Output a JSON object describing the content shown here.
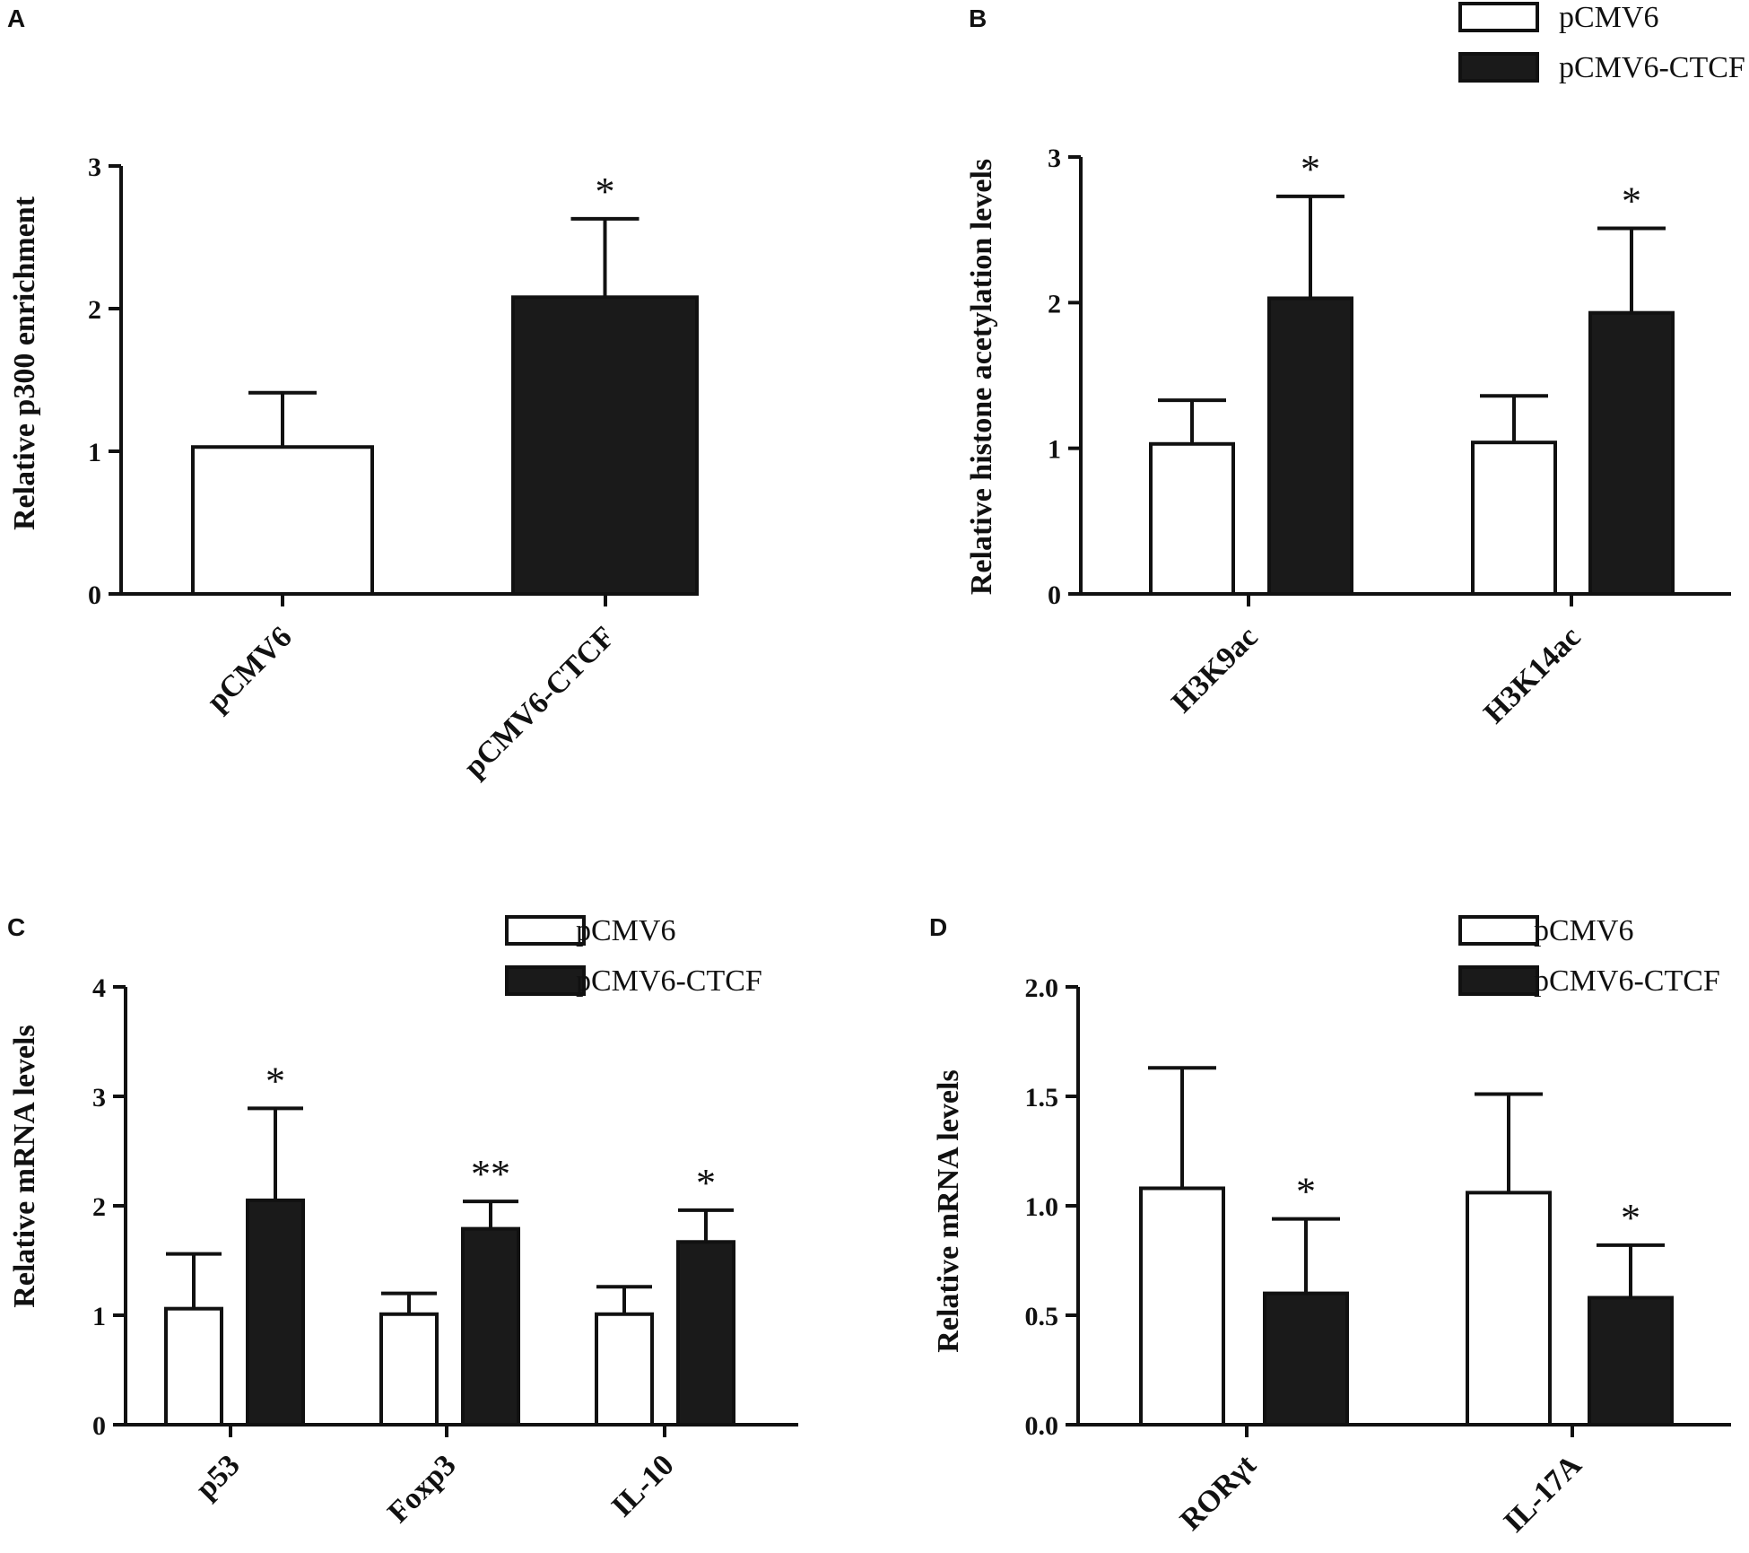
{
  "colors": {
    "pCMV6": "#ffffff",
    "pCMV6-CTCF": "#1a1a1a",
    "ink": "#111111"
  },
  "chart_data": [
    {
      "panel": "A",
      "type": "bar",
      "title": "",
      "xlabel": "",
      "ylabel": "Relative p300 enrichment",
      "ylim": [
        0,
        3
      ],
      "yticks": [
        0,
        1,
        2,
        3
      ],
      "ytick_labels": [
        "0",
        "1",
        "2",
        "3"
      ],
      "categories": [
        "pCMV6",
        "pCMV6-CTCF"
      ],
      "legend": null,
      "series": [
        {
          "name": "value",
          "values": [
            1.03,
            2.08
          ],
          "errors": [
            0.38,
            0.55
          ],
          "fills": [
            "pCMV6",
            "pCMV6-CTCF"
          ]
        }
      ],
      "significance": [
        "",
        "*"
      ]
    },
    {
      "panel": "B",
      "type": "bar",
      "title": "",
      "xlabel": "",
      "ylabel": "Relative histone  acetylation levels",
      "ylim": [
        0,
        3
      ],
      "yticks": [
        0,
        1,
        2,
        3
      ],
      "ytick_labels": [
        "0",
        "1",
        "2",
        "3"
      ],
      "categories": [
        "H3K9ac",
        "H3K14ac"
      ],
      "legend": {
        "position": "top-right",
        "entries": [
          "pCMV6",
          "pCMV6-CTCF"
        ]
      },
      "series": [
        {
          "name": "pCMV6",
          "values": [
            1.03,
            1.04
          ],
          "errors": [
            0.3,
            0.32
          ]
        },
        {
          "name": "pCMV6-CTCF",
          "values": [
            2.03,
            1.93
          ],
          "errors": [
            0.7,
            0.58
          ]
        }
      ],
      "significance": [
        [
          "",
          "*"
        ],
        [
          "",
          "*"
        ]
      ]
    },
    {
      "panel": "C",
      "type": "bar",
      "title": "",
      "xlabel": "",
      "ylabel": "Relative mRNA levels",
      "ylim": [
        0,
        4
      ],
      "yticks": [
        0,
        1,
        2,
        3,
        4
      ],
      "ytick_labels": [
        "0",
        "1",
        "2",
        "3",
        "4"
      ],
      "categories": [
        "p53",
        "Foxp3",
        "IL-10"
      ],
      "legend": {
        "position": "top-right",
        "entries": [
          "pCMV6",
          "pCMV6-CTCF"
        ]
      },
      "series": [
        {
          "name": "pCMV6",
          "values": [
            1.06,
            1.01,
            1.01
          ],
          "errors": [
            0.5,
            0.19,
            0.25
          ]
        },
        {
          "name": "pCMV6-CTCF",
          "values": [
            2.05,
            1.79,
            1.67
          ],
          "errors": [
            0.84,
            0.25,
            0.29
          ]
        }
      ],
      "significance": [
        [
          "",
          "*"
        ],
        [
          "",
          "**"
        ],
        [
          "",
          "*"
        ]
      ]
    },
    {
      "panel": "D",
      "type": "bar",
      "title": "",
      "xlabel": "",
      "ylabel": "Relative mRNA levels",
      "ylim": [
        0,
        2
      ],
      "yticks": [
        0,
        0.5,
        1,
        1.5,
        2
      ],
      "ytick_labels": [
        "0.0",
        "0.5",
        "1.0",
        "1.5",
        "2.0"
      ],
      "categories": [
        "RORγt",
        "IL-17A"
      ],
      "legend": {
        "position": "top-right",
        "entries": [
          "pCMV6",
          "pCMV6-CTCF"
        ]
      },
      "series": [
        {
          "name": "pCMV6",
          "values": [
            1.08,
            1.06
          ],
          "errors": [
            0.55,
            0.45
          ]
        },
        {
          "name": "pCMV6-CTCF",
          "values": [
            0.6,
            0.58
          ],
          "errors": [
            0.34,
            0.24
          ]
        }
      ],
      "significance": [
        [
          "",
          "*"
        ],
        [
          "",
          "*"
        ]
      ]
    }
  ]
}
